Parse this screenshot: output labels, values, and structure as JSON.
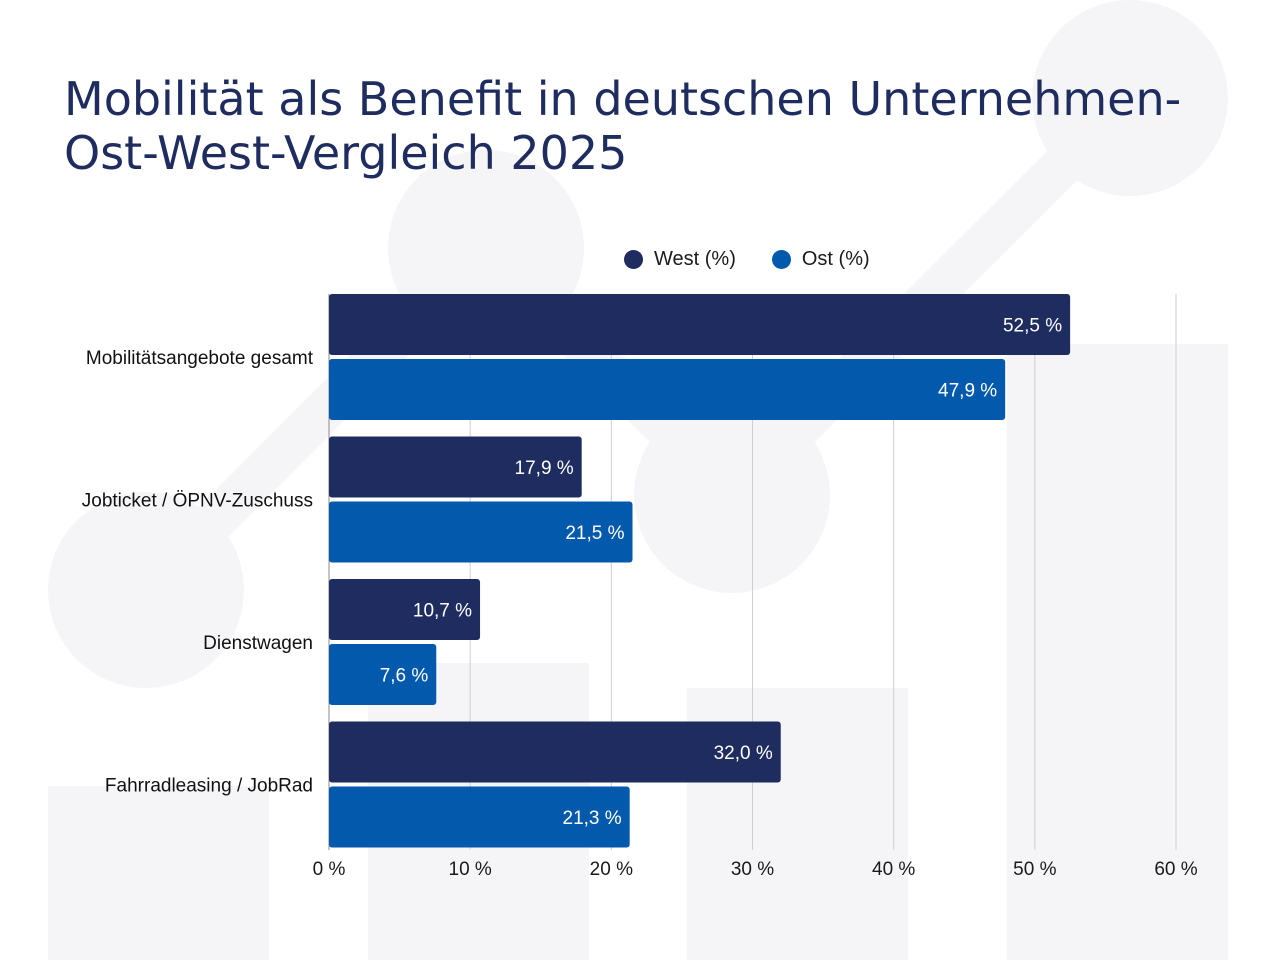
{
  "chart_data": {
    "type": "bar",
    "orientation": "horizontal",
    "title_lines": [
      "Mobilität als Benefit in deutschen Unternehmen-",
      "Ost-West-Vergleich 2025"
    ],
    "categories": [
      "Mobilitätsangebote gesamt",
      "Jobticket / ÖPNV-Zuschuss",
      "Dienstwagen",
      "Fahrradleasing / JobRad"
    ],
    "series": [
      {
        "name": "West (%)",
        "color": "#1f2c5f",
        "values": [
          52.5,
          17.9,
          10.7,
          32.0
        ],
        "labels": [
          "52,5 %",
          "17,9 %",
          "10,7 %",
          "32,0 %"
        ]
      },
      {
        "name": "Ost (%)",
        "color": "#035aad",
        "values": [
          47.9,
          21.5,
          7.6,
          21.3
        ],
        "labels": [
          "47,9 %",
          "21,5 %",
          "7,6 %",
          "21,3 %"
        ]
      }
    ],
    "xlim": [
      0,
      60
    ],
    "xticks": [
      0,
      10,
      20,
      30,
      40,
      50,
      60
    ],
    "xtick_labels": [
      "0 %",
      "10 %",
      "20 %",
      "30 %",
      "40 %",
      "50 %",
      "60 %"
    ],
    "grid": true,
    "legend_position": "top-right",
    "xlabel": "",
    "ylabel": ""
  },
  "colors": {
    "title": "#1f2c5f",
    "grid": "#cfcfcf",
    "background_shapes": "#f5f5f7"
  }
}
